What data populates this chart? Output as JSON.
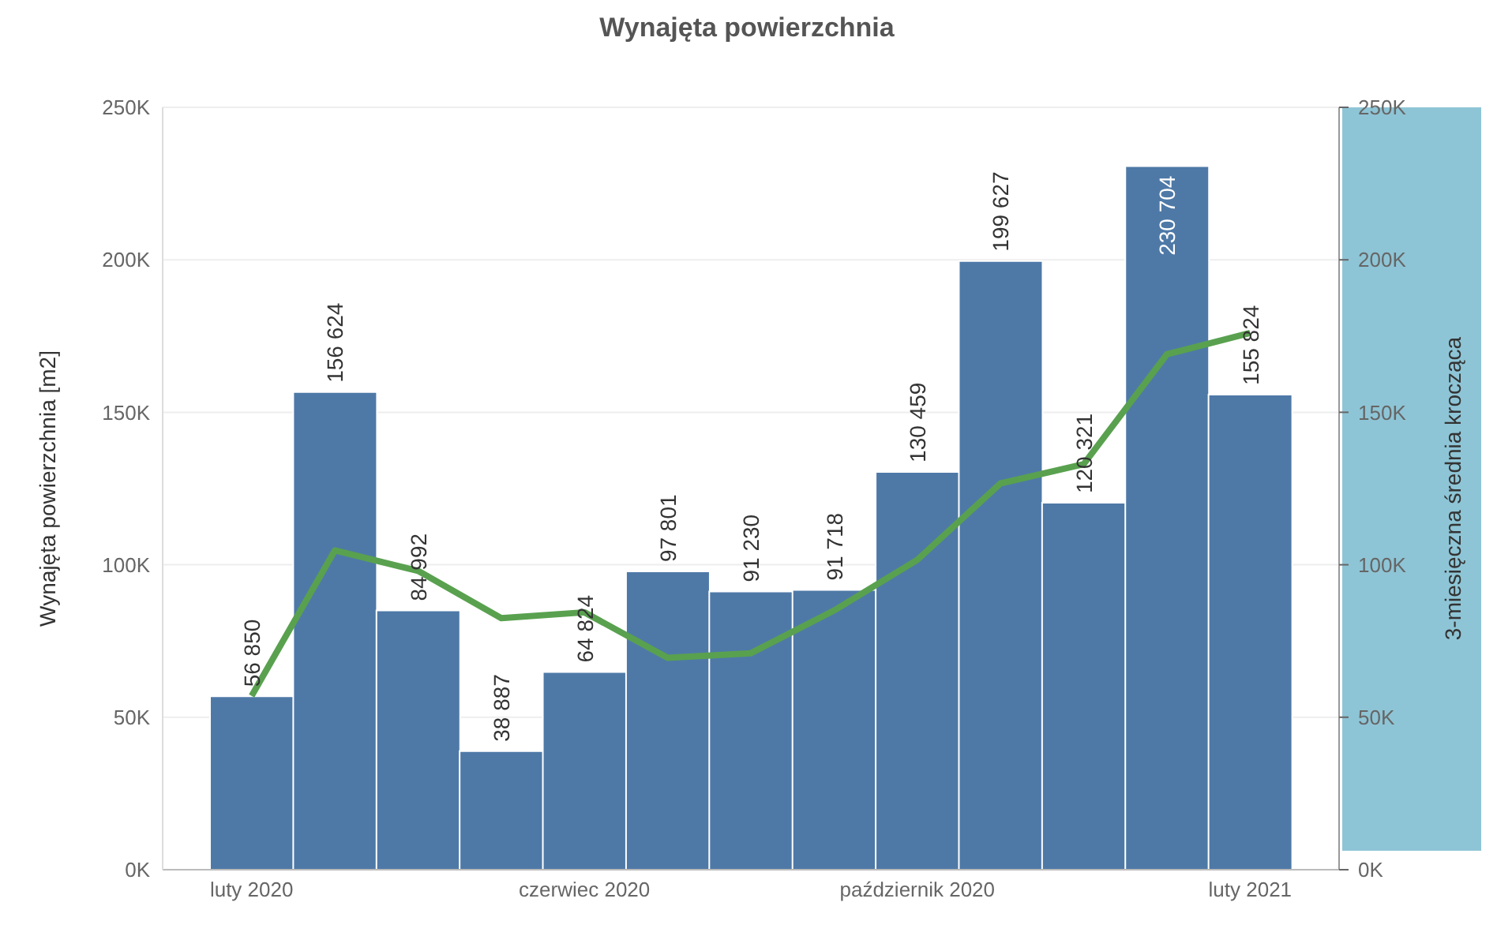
{
  "chart_data": {
    "type": "bar",
    "title": "Wynajęta powierzchnia",
    "ylabel": "Wynajęta powierzchnia [m2]",
    "y2label": "3-miesięczna średnia krocząca",
    "categories": [
      "luty 2020",
      null,
      null,
      null,
      "czerwiec 2020",
      null,
      null,
      null,
      "październik 2020",
      null,
      null,
      null,
      "luty 2021"
    ],
    "series": [
      {
        "color": "#4e79a7",
        "values": [
          56850,
          156624,
          84992,
          38887,
          64824,
          97801,
          91230,
          91718,
          130459,
          199627,
          120321,
          230704,
          155824
        ],
        "value_labels": [
          "56 850",
          "156 624",
          "84 992",
          "38 887",
          "64 824",
          "97 801",
          "91 230",
          "91 718",
          "130 459",
          "199 627",
          "120 321",
          "230 704",
          "155 824"
        ]
      },
      {
        "type": "line",
        "axis": "y2",
        "color": "#59a14f",
        "values": [
          57000,
          104700,
          98000,
          82500,
          84400,
          69500,
          71000,
          85000,
          101600,
          126700,
          133000,
          169000,
          176000
        ]
      }
    ],
    "ylim": [
      0,
      250000
    ],
    "yticks": [
      {
        "value": 0,
        "label": "0K"
      },
      {
        "value": 50000,
        "label": "50K"
      },
      {
        "value": 100000,
        "label": "100K"
      },
      {
        "value": 150000,
        "label": "150K"
      },
      {
        "value": 200000,
        "label": "200K"
      },
      {
        "value": 250000,
        "label": "250K"
      }
    ],
    "y2lim": [
      0,
      250000
    ],
    "y2ticks": [
      {
        "value": 0,
        "label": "0K"
      },
      {
        "value": 50000,
        "label": "50K"
      },
      {
        "value": 100000,
        "label": "100K"
      },
      {
        "value": 150000,
        "label": "150K"
      },
      {
        "value": 200000,
        "label": "200K"
      },
      {
        "value": 250000,
        "label": "250K"
      }
    ],
    "grid": "y",
    "marker": "none",
    "line_style": "solid",
    "legend": false
  }
}
